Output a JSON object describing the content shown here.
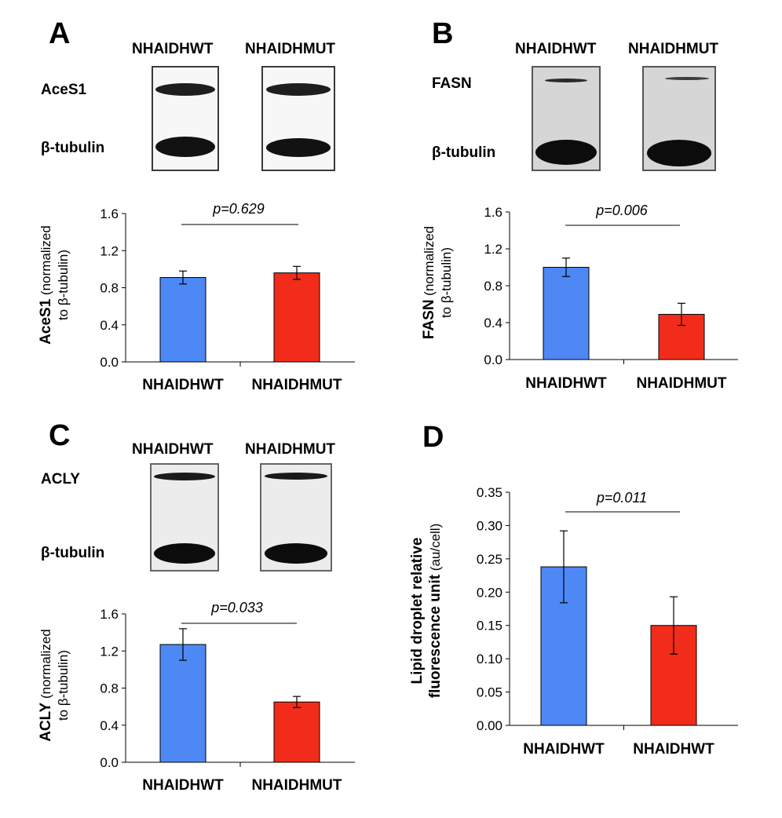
{
  "panels": {
    "A": {
      "label": "A",
      "lanes": [
        "NHAIDHWT",
        "NHAIDHMUT"
      ],
      "blot_labels": [
        "AceS1",
        "β-tubulin"
      ]
    },
    "B": {
      "label": "B",
      "lanes": [
        "NHAIDHWT",
        "NHAIDHMUT"
      ],
      "blot_labels": [
        "FASN",
        "β-tubulin"
      ]
    },
    "C": {
      "label": "C",
      "lanes": [
        "NHAIDHWT",
        "NHAIDHMUT"
      ],
      "blot_labels": [
        "ACLY",
        "β-tubulin"
      ]
    },
    "D": {
      "label": "D"
    }
  },
  "colors": {
    "wt": "#4d88f5",
    "mut": "#f22c1a"
  },
  "chart_data": [
    {
      "id": "A",
      "type": "bar",
      "categories": [
        "NHAIDHWT",
        "NHAIDHMUT"
      ],
      "values": [
        0.91,
        0.96
      ],
      "errors": [
        0.07,
        0.07
      ],
      "ylim": [
        0,
        1.6
      ],
      "ticks": [
        "0.0",
        "0.4",
        "0.8",
        "1.2",
        "1.6"
      ],
      "ylabel_bold": "AceS1",
      "ylabel_rest": " (normalized",
      "ylabel_line2": "to β-tubulin)",
      "pvalue": "p=0.629"
    },
    {
      "id": "B",
      "type": "bar",
      "categories": [
        "NHAIDHWT",
        "NHAIDHMUT"
      ],
      "values": [
        1.0,
        0.49
      ],
      "errors": [
        0.1,
        0.12
      ],
      "ylim": [
        0,
        1.6
      ],
      "ticks": [
        "0.0",
        "0.4",
        "0.8",
        "1.2",
        "1.6"
      ],
      "ylabel_bold": "FASN",
      "ylabel_rest": " (normalized",
      "ylabel_line2": "to β-tubulin)",
      "pvalue": "p=0.006"
    },
    {
      "id": "C",
      "type": "bar",
      "categories": [
        "NHAIDHWT",
        "NHAIDHMUT"
      ],
      "values": [
        1.27,
        0.65
      ],
      "errors": [
        0.17,
        0.06
      ],
      "ylim": [
        0,
        1.6
      ],
      "ticks": [
        "0.0",
        "0.4",
        "0.8",
        "1.2",
        "1.6"
      ],
      "ylabel_bold": "ACLY",
      "ylabel_rest": " (normalized",
      "ylabel_line2": "to β-tubulin)",
      "pvalue": "p=0.033"
    },
    {
      "id": "D",
      "type": "bar",
      "categories": [
        "NHAIDHWT",
        "NHAIDHWT"
      ],
      "values": [
        0.238,
        0.15
      ],
      "errors": [
        0.054,
        0.043
      ],
      "ylim": [
        0,
        0.35
      ],
      "ticks": [
        "0.00",
        "0.05",
        "0.10",
        "0.15",
        "0.20",
        "0.25",
        "0.30",
        "0.35"
      ],
      "ylabel_bold": "Lipid droplet relative",
      "ylabel_rest": "",
      "ylabel_line2_bold": "fluorescence unit",
      "ylabel_line2": " (au/cell)",
      "pvalue": "p=0.011"
    }
  ]
}
